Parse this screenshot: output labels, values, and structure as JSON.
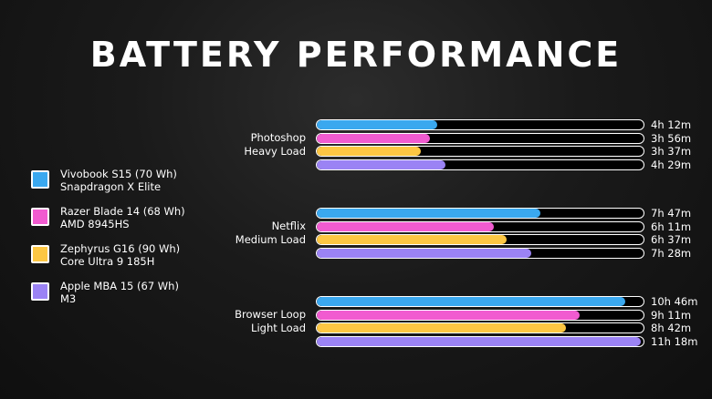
{
  "chart_data": {
    "type": "bar",
    "title": "BATTERY PERFORMANCE",
    "orientation": "horizontal",
    "unit": "hours",
    "xlim": [
      0,
      11.3
    ],
    "legend_position": "left",
    "series": [
      {
        "name_line1": "Vivobook S15 (70 Wh)",
        "name_line2": "Snapdragon X Elite",
        "color": "#3aa8ef"
      },
      {
        "name_line1": "Razer Blade 14 (68 Wh)",
        "name_line2": "AMD 8945HS",
        "color": "#f15bd0"
      },
      {
        "name_line1": "Zephyrus G16 (90 Wh)",
        "name_line2": "Core Ultra 9 185H",
        "color": "#fdc743"
      },
      {
        "name_line1": "Apple MBA 15 (67 Wh)",
        "name_line2": "M3",
        "color": "#9b83f4"
      }
    ],
    "groups": [
      {
        "label_line1": "Photoshop",
        "label_line2": "Heavy Load",
        "values": [
          4.2,
          3.933,
          3.617,
          4.483
        ],
        "labels": [
          "4h 12m",
          "3h 56m",
          "3h 37m",
          "4h 29m"
        ]
      },
      {
        "label_line1": "Netflix",
        "label_line2": "Medium Load",
        "values": [
          7.783,
          6.183,
          6.617,
          7.467
        ],
        "labels": [
          "7h 47m",
          "6h 11m",
          "6h 37m",
          "7h 28m"
        ]
      },
      {
        "label_line1": "Browser Loop",
        "label_line2": "Light Load",
        "values": [
          10.767,
          9.183,
          8.7,
          11.3
        ],
        "labels": [
          "10h 46m",
          "9h 11m",
          "8h 42m",
          "11h 18m"
        ]
      }
    ]
  }
}
